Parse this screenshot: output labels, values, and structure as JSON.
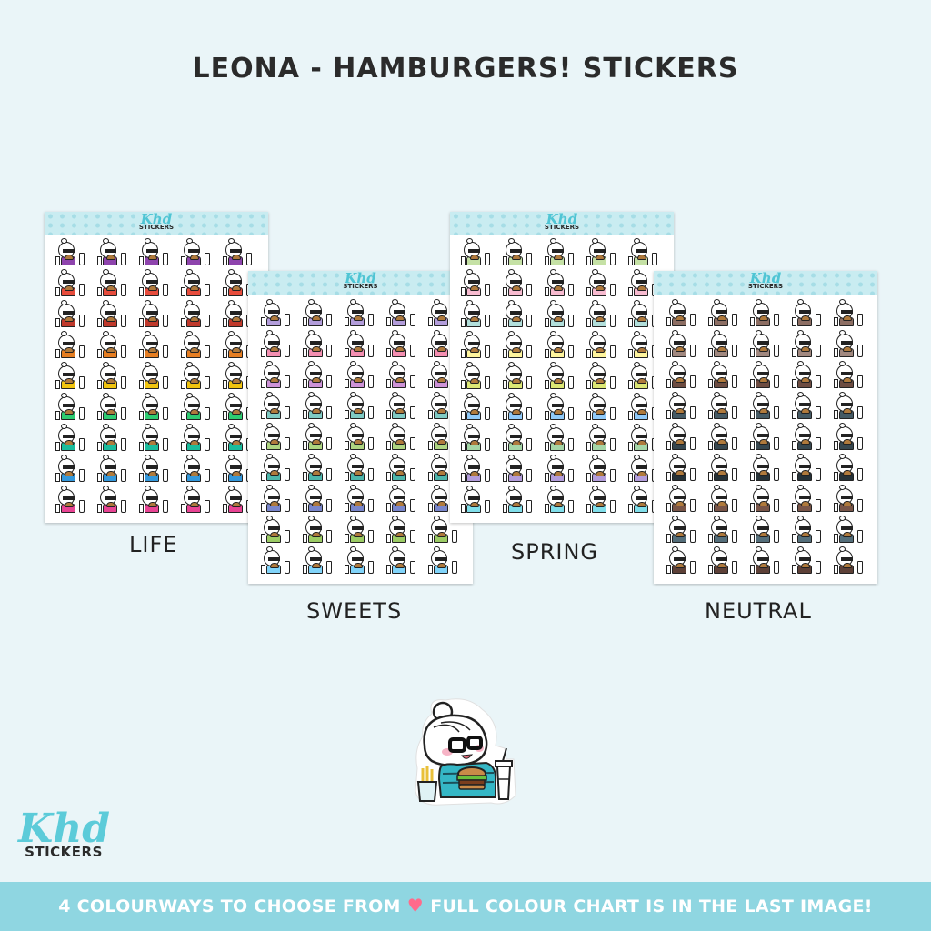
{
  "title": "LEONA - HAMBURGERS! STICKERS",
  "sheet_logo": {
    "script": "Khd",
    "word": "STICKERS"
  },
  "sheets": [
    {
      "id": "life",
      "label": "LIFE",
      "colors": [
        "#8e44ad",
        "#e74c3c",
        "#c0392b",
        "#e67e22",
        "#f1c40f",
        "#2ecc71",
        "#1abc9c",
        "#3498db",
        "#e84393"
      ]
    },
    {
      "id": "sweets",
      "label": "SWEETS",
      "colors": [
        "#b39ddb",
        "#f48fb1",
        "#ce93d8",
        "#80cbc4",
        "#aed581",
        "#4db6ac",
        "#7986cb",
        "#9ccc65",
        "#81d4fa",
        "#f06292"
      ]
    },
    {
      "id": "spring",
      "label": "SPRING",
      "colors": [
        "#c5e1a5",
        "#f8bbd0",
        "#b2dfdb",
        "#fff59d",
        "#dce775",
        "#90caf9",
        "#a5d6a7",
        "#b39ddb",
        "#80deea"
      ]
    },
    {
      "id": "neutral",
      "label": "NEUTRAL",
      "colors": [
        "#8d6e63",
        "#a1887f",
        "#6d4c41",
        "#455a64",
        "#37474f",
        "#263238",
        "#795548",
        "#546e7a",
        "#5d4037",
        "#616161"
      ]
    }
  ],
  "brand": {
    "script": "Khd",
    "word": "STICKERS"
  },
  "banner": {
    "left_text": "4 COLOURWAYS TO CHOOSE FROM",
    "right_text": "FULL COLOUR CHART IS IN THE LAST IMAGE!",
    "icon": "heart-icon"
  }
}
